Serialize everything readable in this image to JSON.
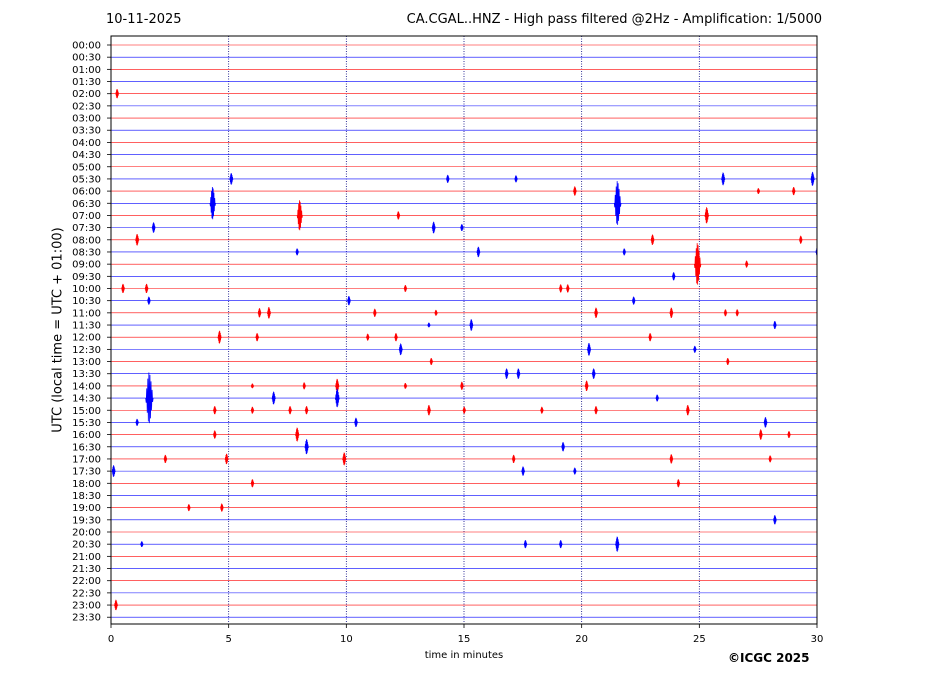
{
  "header": {
    "date": "10-11-2025",
    "title": "CA.CGAL..HNZ - High pass filtered @2Hz - Amplification: 1/5000"
  },
  "footer": {
    "copyright": "©ICGC 2025"
  },
  "colors": {
    "trace_a": "#ff0000",
    "trace_b": "#0000ff",
    "gridline": "#000080",
    "axis": "#000000"
  },
  "chart_data": {
    "type": "line",
    "xlabel": "time in minutes",
    "ylabel": "UTC (local time = UTC + 01:00)",
    "xlim": [
      0,
      30
    ],
    "x_ticks": [
      0,
      5,
      10,
      15,
      20,
      25,
      30
    ],
    "vertical_gridlines": [
      5,
      10,
      15,
      20,
      25
    ],
    "row_labels": [
      "00:00",
      "00:30",
      "01:00",
      "01:30",
      "02:00",
      "02:30",
      "03:00",
      "03:30",
      "04:00",
      "04:30",
      "05:00",
      "05:30",
      "06:00",
      "06:30",
      "07:00",
      "07:30",
      "08:00",
      "08:30",
      "09:00",
      "09:30",
      "10:00",
      "10:30",
      "11:00",
      "11:30",
      "12:00",
      "12:30",
      "13:00",
      "13:30",
      "14:00",
      "14:30",
      "15:00",
      "15:30",
      "16:00",
      "16:30",
      "17:00",
      "17:30",
      "18:00",
      "18:30",
      "19:00",
      "19:30",
      "20:00",
      "20:30",
      "21:00",
      "21:30",
      "22:00",
      "22:30",
      "23:00",
      "23:30"
    ],
    "events": [
      {
        "row": "02:00",
        "t": 0.25,
        "amp": 0.4
      },
      {
        "row": "05:30",
        "t": 5.1,
        "amp": 0.5
      },
      {
        "row": "05:30",
        "t": 14.3,
        "amp": 0.35
      },
      {
        "row": "05:30",
        "t": 17.2,
        "amp": 0.3
      },
      {
        "row": "05:30",
        "t": 26.0,
        "amp": 0.55
      },
      {
        "row": "05:30",
        "t": 29.8,
        "amp": 0.6
      },
      {
        "row": "06:00",
        "t": 19.7,
        "amp": 0.4
      },
      {
        "row": "06:00",
        "t": 27.5,
        "amp": 0.25
      },
      {
        "row": "06:00",
        "t": 29.0,
        "amp": 0.35
      },
      {
        "row": "06:30",
        "t": 4.3,
        "amp": 1.4
      },
      {
        "row": "06:30",
        "t": 21.5,
        "amp": 1.9
      },
      {
        "row": "07:00",
        "t": 8.0,
        "amp": 1.3
      },
      {
        "row": "07:00",
        "t": 12.2,
        "amp": 0.35
      },
      {
        "row": "07:00",
        "t": 25.3,
        "amp": 0.7
      },
      {
        "row": "07:30",
        "t": 1.8,
        "amp": 0.45
      },
      {
        "row": "07:30",
        "t": 13.7,
        "amp": 0.5
      },
      {
        "row": "07:30",
        "t": 14.9,
        "amp": 0.3
      },
      {
        "row": "08:00",
        "t": 1.1,
        "amp": 0.5
      },
      {
        "row": "08:00",
        "t": 23.0,
        "amp": 0.45
      },
      {
        "row": "08:00",
        "t": 29.3,
        "amp": 0.35
      },
      {
        "row": "08:30",
        "t": 7.9,
        "amp": 0.3
      },
      {
        "row": "08:30",
        "t": 15.6,
        "amp": 0.45
      },
      {
        "row": "08:30",
        "t": 21.8,
        "amp": 0.3
      },
      {
        "row": "08:30",
        "t": 30.0,
        "amp": 0.4
      },
      {
        "row": "09:00",
        "t": 24.9,
        "amp": 1.8
      },
      {
        "row": "09:00",
        "t": 27.0,
        "amp": 0.3
      },
      {
        "row": "09:30",
        "t": 23.9,
        "amp": 0.35
      },
      {
        "row": "10:00",
        "t": 0.5,
        "amp": 0.4
      },
      {
        "row": "10:00",
        "t": 1.5,
        "amp": 0.4
      },
      {
        "row": "10:00",
        "t": 12.5,
        "amp": 0.3
      },
      {
        "row": "10:00",
        "t": 19.1,
        "amp": 0.35
      },
      {
        "row": "10:00",
        "t": 19.4,
        "amp": 0.35
      },
      {
        "row": "10:30",
        "t": 1.6,
        "amp": 0.35
      },
      {
        "row": "10:30",
        "t": 10.1,
        "amp": 0.4
      },
      {
        "row": "10:30",
        "t": 22.2,
        "amp": 0.35
      },
      {
        "row": "11:00",
        "t": 6.3,
        "amp": 0.4
      },
      {
        "row": "11:00",
        "t": 6.7,
        "amp": 0.5
      },
      {
        "row": "11:00",
        "t": 11.2,
        "amp": 0.35
      },
      {
        "row": "11:00",
        "t": 13.8,
        "amp": 0.25
      },
      {
        "row": "11:00",
        "t": 20.6,
        "amp": 0.45
      },
      {
        "row": "11:00",
        "t": 23.8,
        "amp": 0.45
      },
      {
        "row": "11:00",
        "t": 26.1,
        "amp": 0.3
      },
      {
        "row": "11:00",
        "t": 26.6,
        "amp": 0.3
      },
      {
        "row": "11:30",
        "t": 13.5,
        "amp": 0.2
      },
      {
        "row": "11:30",
        "t": 15.3,
        "amp": 0.5
      },
      {
        "row": "11:30",
        "t": 28.2,
        "amp": 0.35
      },
      {
        "row": "12:00",
        "t": 4.6,
        "amp": 0.55
      },
      {
        "row": "12:00",
        "t": 6.2,
        "amp": 0.35
      },
      {
        "row": "12:00",
        "t": 10.9,
        "amp": 0.3
      },
      {
        "row": "12:00",
        "t": 12.1,
        "amp": 0.35
      },
      {
        "row": "12:00",
        "t": 22.9,
        "amp": 0.35
      },
      {
        "row": "12:30",
        "t": 12.3,
        "amp": 0.5
      },
      {
        "row": "12:30",
        "t": 20.3,
        "amp": 0.55
      },
      {
        "row": "12:30",
        "t": 24.8,
        "amp": 0.3
      },
      {
        "row": "13:00",
        "t": 13.6,
        "amp": 0.3
      },
      {
        "row": "13:00",
        "t": 26.2,
        "amp": 0.3
      },
      {
        "row": "13:30",
        "t": 16.8,
        "amp": 0.45
      },
      {
        "row": "13:30",
        "t": 17.3,
        "amp": 0.45
      },
      {
        "row": "13:30",
        "t": 20.5,
        "amp": 0.45
      },
      {
        "row": "14:00",
        "t": 6.0,
        "amp": 0.2
      },
      {
        "row": "14:00",
        "t": 8.2,
        "amp": 0.3
      },
      {
        "row": "14:00",
        "t": 9.6,
        "amp": 0.6
      },
      {
        "row": "14:00",
        "t": 12.5,
        "amp": 0.25
      },
      {
        "row": "14:00",
        "t": 14.9,
        "amp": 0.35
      },
      {
        "row": "14:00",
        "t": 20.2,
        "amp": 0.45
      },
      {
        "row": "14:30",
        "t": 1.6,
        "amp": 2.2
      },
      {
        "row": "14:30",
        "t": 6.9,
        "amp": 0.55
      },
      {
        "row": "14:30",
        "t": 9.6,
        "amp": 0.8
      },
      {
        "row": "14:30",
        "t": 23.2,
        "amp": 0.3
      },
      {
        "row": "15:00",
        "t": 4.4,
        "amp": 0.35
      },
      {
        "row": "15:00",
        "t": 6.0,
        "amp": 0.3
      },
      {
        "row": "15:00",
        "t": 7.6,
        "amp": 0.35
      },
      {
        "row": "15:00",
        "t": 8.3,
        "amp": 0.35
      },
      {
        "row": "15:00",
        "t": 13.5,
        "amp": 0.45
      },
      {
        "row": "15:00",
        "t": 15.0,
        "amp": 0.3
      },
      {
        "row": "15:00",
        "t": 18.3,
        "amp": 0.3
      },
      {
        "row": "15:00",
        "t": 20.6,
        "amp": 0.35
      },
      {
        "row": "15:00",
        "t": 24.5,
        "amp": 0.45
      },
      {
        "row": "15:30",
        "t": 1.1,
        "amp": 0.3
      },
      {
        "row": "15:30",
        "t": 10.4,
        "amp": 0.4
      },
      {
        "row": "15:30",
        "t": 27.8,
        "amp": 0.45
      },
      {
        "row": "16:00",
        "t": 4.4,
        "amp": 0.35
      },
      {
        "row": "16:00",
        "t": 7.9,
        "amp": 0.6
      },
      {
        "row": "16:00",
        "t": 27.6,
        "amp": 0.45
      },
      {
        "row": "16:00",
        "t": 28.8,
        "amp": 0.3
      },
      {
        "row": "16:30",
        "t": 8.3,
        "amp": 0.65
      },
      {
        "row": "16:30",
        "t": 19.2,
        "amp": 0.4
      },
      {
        "row": "17:00",
        "t": 2.3,
        "amp": 0.35
      },
      {
        "row": "17:00",
        "t": 4.9,
        "amp": 0.45
      },
      {
        "row": "17:00",
        "t": 9.9,
        "amp": 0.55
      },
      {
        "row": "17:00",
        "t": 17.1,
        "amp": 0.35
      },
      {
        "row": "17:00",
        "t": 23.8,
        "amp": 0.4
      },
      {
        "row": "17:00",
        "t": 28.0,
        "amp": 0.3
      },
      {
        "row": "17:30",
        "t": 0.1,
        "amp": 0.5
      },
      {
        "row": "17:30",
        "t": 17.5,
        "amp": 0.4
      },
      {
        "row": "17:30",
        "t": 19.7,
        "amp": 0.3
      },
      {
        "row": "18:00",
        "t": 6.0,
        "amp": 0.35
      },
      {
        "row": "18:00",
        "t": 24.1,
        "amp": 0.35
      },
      {
        "row": "19:00",
        "t": 3.3,
        "amp": 0.3
      },
      {
        "row": "19:00",
        "t": 4.7,
        "amp": 0.35
      },
      {
        "row": "19:30",
        "t": 28.2,
        "amp": 0.4
      },
      {
        "row": "20:30",
        "t": 1.3,
        "amp": 0.25
      },
      {
        "row": "20:30",
        "t": 17.6,
        "amp": 0.35
      },
      {
        "row": "20:30",
        "t": 19.1,
        "amp": 0.35
      },
      {
        "row": "20:30",
        "t": 21.5,
        "amp": 0.65
      },
      {
        "row": "23:00",
        "t": 0.2,
        "amp": 0.45
      }
    ]
  }
}
